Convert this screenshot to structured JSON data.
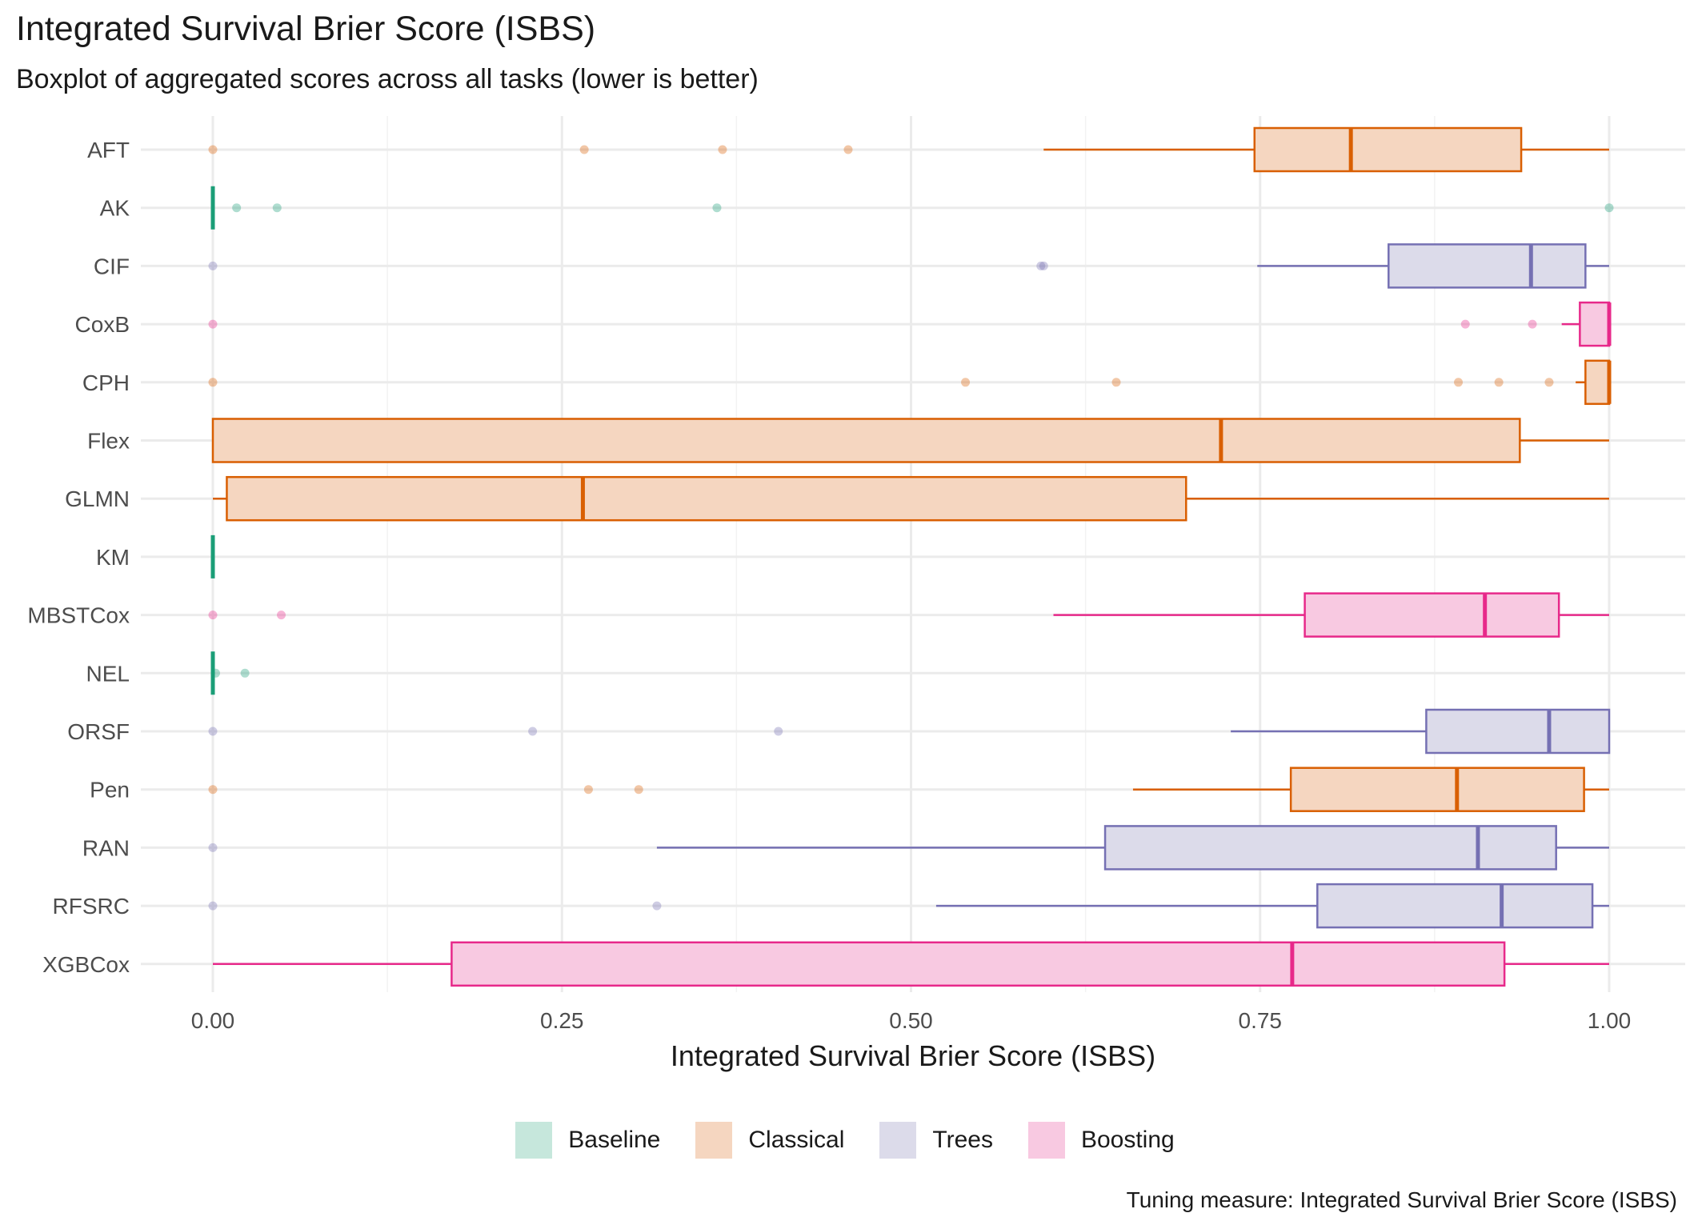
{
  "chart_data": {
    "type": "boxplot",
    "orientation": "horizontal",
    "title": "Integrated Survival Brier Score (ISBS)",
    "subtitle": "Boxplot of aggregated scores across all tasks (lower is better)",
    "xlabel": "Integrated Survival Brier Score (ISBS)",
    "caption": "Tuning measure: Integrated Survival Brier Score (ISBS)",
    "xlim": [
      -0.05,
      1.05
    ],
    "xticks": [
      0.0,
      0.25,
      0.5,
      0.75,
      1.0
    ],
    "xtick_labels": [
      "0.00",
      "0.25",
      "0.50",
      "0.75",
      "1.00"
    ],
    "legend_position": "bottom",
    "groups": [
      {
        "name": "Baseline",
        "color": "#1b9e77",
        "fill": "#c6e7dc"
      },
      {
        "name": "Classical",
        "color": "#d95f02",
        "fill": "#f5d6c0"
      },
      {
        "name": "Trees",
        "color": "#7570b3",
        "fill": "#dcdbea"
      },
      {
        "name": "Boosting",
        "color": "#e7298a",
        "fill": "#f8c9e1"
      }
    ],
    "series": [
      {
        "name": "AFT",
        "group": "Classical",
        "whisker_low": 0.595,
        "q1": 0.746,
        "median": 0.815,
        "q3": 0.937,
        "whisker_high": 1.0,
        "outliers": [
          0.0,
          0.266,
          0.365,
          0.455
        ]
      },
      {
        "name": "AK",
        "group": "Baseline",
        "whisker_low": 0.0,
        "q1": 0.0,
        "median": 0.0,
        "q3": 0.0,
        "whisker_high": 0.0,
        "outliers": [
          0.017,
          0.046,
          0.361,
          1.0
        ]
      },
      {
        "name": "CIF",
        "group": "Trees",
        "whisker_low": 0.748,
        "q1": 0.842,
        "median": 0.944,
        "q3": 0.983,
        "whisker_high": 1.0,
        "outliers": [
          0.0,
          0.593,
          0.595
        ]
      },
      {
        "name": "CoxB",
        "group": "Boosting",
        "whisker_low": 0.966,
        "q1": 0.979,
        "median": 1.0,
        "q3": 1.0,
        "whisker_high": 1.0,
        "outliers": [
          0.0,
          0.897,
          0.945
        ]
      },
      {
        "name": "CPH",
        "group": "Classical",
        "whisker_low": 0.976,
        "q1": 0.983,
        "median": 1.0,
        "q3": 1.0,
        "whisker_high": 1.0,
        "outliers": [
          0.0,
          0.539,
          0.647,
          0.892,
          0.921,
          0.957
        ]
      },
      {
        "name": "Flex",
        "group": "Classical",
        "whisker_low": 0.0,
        "q1": 0.0,
        "median": 0.722,
        "q3": 0.936,
        "whisker_high": 1.0,
        "outliers": []
      },
      {
        "name": "GLMN",
        "group": "Classical",
        "whisker_low": 0.0,
        "q1": 0.01,
        "median": 0.265,
        "q3": 0.697,
        "whisker_high": 1.0,
        "outliers": []
      },
      {
        "name": "KM",
        "group": "Baseline",
        "whisker_low": 0.0,
        "q1": 0.0,
        "median": 0.0,
        "q3": 0.0,
        "whisker_high": 0.0,
        "outliers": []
      },
      {
        "name": "MBSTCox",
        "group": "Boosting",
        "whisker_low": 0.602,
        "q1": 0.782,
        "median": 0.911,
        "q3": 0.964,
        "whisker_high": 1.0,
        "outliers": [
          0.0,
          0.049
        ]
      },
      {
        "name": "NEL",
        "group": "Baseline",
        "whisker_low": 0.0,
        "q1": 0.0,
        "median": 0.0,
        "q3": 0.0,
        "whisker_high": 0.0,
        "outliers": [
          0.002,
          0.023
        ]
      },
      {
        "name": "ORSF",
        "group": "Trees",
        "whisker_low": 0.729,
        "q1": 0.869,
        "median": 0.957,
        "q3": 1.0,
        "whisker_high": 1.0,
        "outliers": [
          0.0,
          0.229,
          0.405
        ]
      },
      {
        "name": "Pen",
        "group": "Classical",
        "whisker_low": 0.659,
        "q1": 0.772,
        "median": 0.891,
        "q3": 0.982,
        "whisker_high": 1.0,
        "outliers": [
          0.0,
          0.269,
          0.305
        ]
      },
      {
        "name": "RAN",
        "group": "Trees",
        "whisker_low": 0.318,
        "q1": 0.639,
        "median": 0.906,
        "q3": 0.962,
        "whisker_high": 1.0,
        "outliers": [
          0.0
        ]
      },
      {
        "name": "RFSRC",
        "group": "Trees",
        "whisker_low": 0.518,
        "q1": 0.791,
        "median": 0.923,
        "q3": 0.988,
        "whisker_high": 1.0,
        "outliers": [
          0.0,
          0.318
        ]
      },
      {
        "name": "XGBCox",
        "group": "Boosting",
        "whisker_low": 0.0,
        "q1": 0.171,
        "median": 0.773,
        "q3": 0.925,
        "whisker_high": 1.0,
        "outliers": []
      }
    ]
  }
}
